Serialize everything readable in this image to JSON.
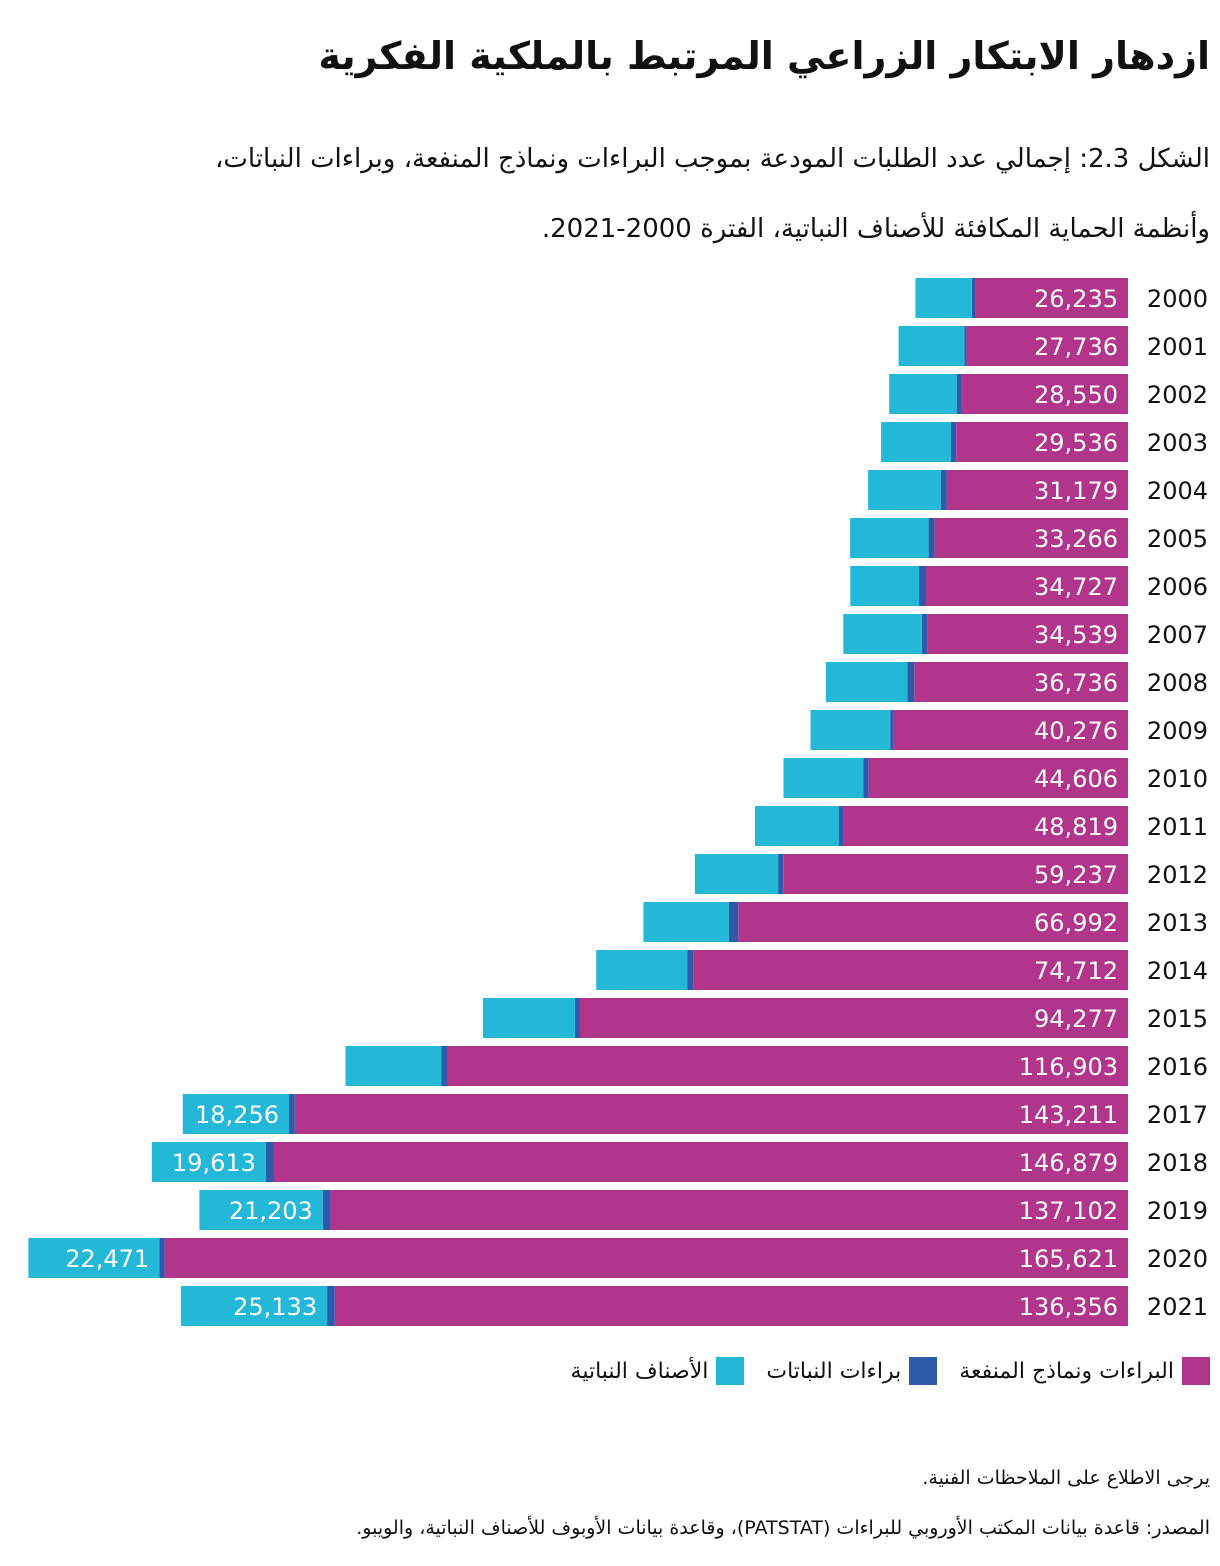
{
  "header": {
    "title": "ازدهار الابتكار الزراعي المرتبط بالملكية الفكرية",
    "subtitle_line1": "الشكل 2.3: إجمالي عدد الطلبات المودعة بموجب البراءات ونماذج المنفعة، وبراءات النباتات،",
    "subtitle_line2": "وأنظمة الحماية المكافئة للأصناف النباتية، الفترة 2000-2021."
  },
  "legend": {
    "items": [
      {
        "label": "البراءات ونماذج المنفعة",
        "color": "#B0358B"
      },
      {
        "label": "براءات النباتات",
        "color": "#2E5AAC"
      },
      {
        "label": "الأصناف النباتية",
        "color": "#23B7D8"
      }
    ]
  },
  "footer": {
    "note": "يرجى الاطلاع على الملاحظات الفنية.",
    "source": "المصدر: قاعدة بيانات المكتب الأوروبي للبراءات (PATSTAT)، وقاعدة بيانات الأوبوف للأصناف النباتية، والويبو."
  },
  "chart_data": {
    "type": "bar",
    "orientation": "horizontal",
    "stacked": true,
    "categories": [
      "2000",
      "2001",
      "2002",
      "2003",
      "2004",
      "2005",
      "2006",
      "2007",
      "2008",
      "2009",
      "2010",
      "2011",
      "2012",
      "2013",
      "2014",
      "2015",
      "2016",
      "2017",
      "2018",
      "2019",
      "2020",
      "2021"
    ],
    "series": [
      {
        "name": "البراءات ونماذج المنفعة",
        "color": "#B0358B",
        "values": [
          26235,
          27736,
          28550,
          29536,
          31179,
          33266,
          34727,
          34539,
          36736,
          40276,
          44606,
          48819,
          59237,
          66992,
          74712,
          94277,
          116903,
          143211,
          146879,
          137102,
          165621,
          136356
        ],
        "labels": [
          "26,235",
          "27,736",
          "28,550",
          "29,536",
          "31,179",
          "33,266",
          "34,727",
          "34,539",
          "36,736",
          "40,276",
          "44,606",
          "48,819",
          "59,237",
          "66,992",
          "74,712",
          "94,277",
          "116,903",
          "143,211",
          "146,879",
          "137,102",
          "165,621",
          "136,356"
        ]
      },
      {
        "name": "براءات النباتات",
        "color": "#2E5AAC",
        "values": [
          600,
          400,
          900,
          900,
          1000,
          1000,
          1200,
          900,
          1200,
          600,
          900,
          900,
          900,
          1600,
          1000,
          800,
          1100,
          1000,
          1300,
          1300,
          900,
          1300
        ]
      },
      {
        "name": "الأصناف النباتية",
        "color": "#23B7D8",
        "values": [
          9700,
          11300,
          11600,
          12000,
          12500,
          13500,
          11800,
          13500,
          14000,
          13700,
          13700,
          14400,
          14300,
          14700,
          15700,
          15800,
          16500,
          18256,
          19613,
          21203,
          22471,
          25133
        ],
        "labels": [
          "",
          "",
          "",
          "",
          "",
          "",
          "",
          "",
          "",
          "",
          "",
          "",
          "",
          "",
          "",
          "",
          "",
          "18,256",
          "19,613",
          "21,203",
          "22,471",
          "25,133"
        ]
      }
    ],
    "xlabel": "",
    "ylabel": "",
    "legend_position": "bottom",
    "grid": false
  }
}
